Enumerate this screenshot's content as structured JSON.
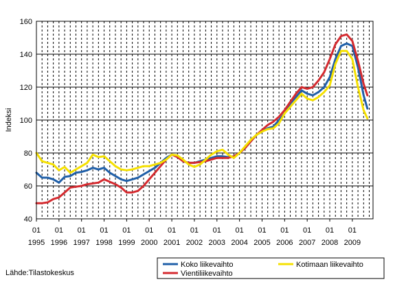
{
  "source_label": "Lähde:Tilastokeskus",
  "colors": {
    "koko": "#1f5fa8",
    "vienti": "#d42a2f",
    "kotimaa": "#f5e000",
    "grid": "#000000",
    "axis": "#000000"
  },
  "chart_data": {
    "type": "line",
    "title": "",
    "xlabel": "",
    "ylabel": "Indeksi",
    "ylim": [
      40,
      160
    ],
    "yticks": [
      40,
      60,
      80,
      100,
      120,
      140,
      160
    ],
    "xlim": [
      1995.0,
      2009.917
    ],
    "x_major_ticks": [
      "01",
      "01",
      "01",
      "01",
      "01",
      "01",
      "01",
      "01",
      "01",
      "01",
      "01",
      "01",
      "01",
      "01",
      "01"
    ],
    "x_year_labels": [
      "1995",
      "1996",
      "1997",
      "1998",
      "1999",
      "2000",
      "2001",
      "2002",
      "2003",
      "2004",
      "2005",
      "2006",
      "2007",
      "2008",
      "2009"
    ],
    "grid_horizontal": true,
    "grid_vertical": "dashed",
    "legend_position": "bottom-right",
    "series": [
      {
        "key": "koko",
        "name": "Koko liikevaihto",
        "color": "#1f5fa8",
        "points": [
          [
            1995.0,
            68
          ],
          [
            1995.25,
            65
          ],
          [
            1995.5,
            65
          ],
          [
            1995.75,
            64
          ],
          [
            1996.0,
            62
          ],
          [
            1996.25,
            65.5
          ],
          [
            1996.5,
            66
          ],
          [
            1996.75,
            68
          ],
          [
            1997.0,
            68.5
          ],
          [
            1997.25,
            69.5
          ],
          [
            1997.5,
            71
          ],
          [
            1997.75,
            70
          ],
          [
            1998.0,
            71
          ],
          [
            1998.25,
            68
          ],
          [
            1998.5,
            66
          ],
          [
            1998.75,
            64
          ],
          [
            1999.0,
            63
          ],
          [
            1999.25,
            64
          ],
          [
            1999.5,
            65
          ],
          [
            1999.75,
            67
          ],
          [
            2000.0,
            69
          ],
          [
            2000.25,
            71
          ],
          [
            2000.5,
            74
          ],
          [
            2000.75,
            77
          ],
          [
            2001.0,
            79
          ],
          [
            2001.25,
            78
          ],
          [
            2001.5,
            75
          ],
          [
            2001.75,
            74
          ],
          [
            2002.0,
            74
          ],
          [
            2002.25,
            75
          ],
          [
            2002.5,
            76
          ],
          [
            2002.75,
            77
          ],
          [
            2003.0,
            78
          ],
          [
            2003.25,
            78
          ],
          [
            2003.5,
            77.5
          ],
          [
            2003.75,
            78
          ],
          [
            2004.0,
            80
          ],
          [
            2004.25,
            83
          ],
          [
            2004.5,
            87
          ],
          [
            2004.75,
            91
          ],
          [
            2005.0,
            93
          ],
          [
            2005.25,
            95
          ],
          [
            2005.5,
            96
          ],
          [
            2005.75,
            100
          ],
          [
            2006.0,
            104
          ],
          [
            2006.25,
            110
          ],
          [
            2006.5,
            114
          ],
          [
            2006.75,
            118
          ],
          [
            2007.0,
            116
          ],
          [
            2007.25,
            115
          ],
          [
            2007.5,
            117
          ],
          [
            2007.75,
            120
          ],
          [
            2008.0,
            126
          ],
          [
            2008.25,
            137
          ],
          [
            2008.5,
            145
          ],
          [
            2008.75,
            146.5
          ],
          [
            2009.0,
            145
          ],
          [
            2009.25,
            132
          ],
          [
            2009.5,
            115
          ],
          [
            2009.667,
            107
          ]
        ]
      },
      {
        "key": "vienti",
        "name": "Vientiliikevaihto",
        "color": "#d42a2f",
        "points": [
          [
            1995.0,
            49.5
          ],
          [
            1995.25,
            49.5
          ],
          [
            1995.5,
            50
          ],
          [
            1995.75,
            52
          ],
          [
            1996.0,
            53
          ],
          [
            1996.25,
            56
          ],
          [
            1996.5,
            59
          ],
          [
            1996.75,
            59.5
          ],
          [
            1997.0,
            60
          ],
          [
            1997.25,
            61
          ],
          [
            1997.5,
            61.5
          ],
          [
            1997.75,
            62
          ],
          [
            1998.0,
            64
          ],
          [
            1998.25,
            62.5
          ],
          [
            1998.5,
            61
          ],
          [
            1998.75,
            59
          ],
          [
            1999.0,
            56
          ],
          [
            1999.25,
            56
          ],
          [
            1999.5,
            57
          ],
          [
            1999.75,
            60
          ],
          [
            2000.0,
            64
          ],
          [
            2000.25,
            68
          ],
          [
            2000.5,
            72
          ],
          [
            2000.75,
            76
          ],
          [
            2001.0,
            79
          ],
          [
            2001.25,
            77.5
          ],
          [
            2001.5,
            75
          ],
          [
            2001.75,
            74
          ],
          [
            2002.0,
            74
          ],
          [
            2002.25,
            74.5
          ],
          [
            2002.5,
            75
          ],
          [
            2002.75,
            76
          ],
          [
            2003.0,
            77
          ],
          [
            2003.25,
            77
          ],
          [
            2003.5,
            77
          ],
          [
            2003.75,
            78
          ],
          [
            2004.0,
            80
          ],
          [
            2004.25,
            83
          ],
          [
            2004.5,
            87
          ],
          [
            2004.75,
            91
          ],
          [
            2005.0,
            94
          ],
          [
            2005.25,
            97
          ],
          [
            2005.5,
            99
          ],
          [
            2005.75,
            102
          ],
          [
            2006.0,
            106
          ],
          [
            2006.25,
            111
          ],
          [
            2006.5,
            116
          ],
          [
            2006.75,
            120
          ],
          [
            2007.0,
            119
          ],
          [
            2007.25,
            120
          ],
          [
            2007.5,
            124
          ],
          [
            2007.75,
            129
          ],
          [
            2008.0,
            137
          ],
          [
            2008.25,
            146
          ],
          [
            2008.5,
            151
          ],
          [
            2008.75,
            152
          ],
          [
            2009.0,
            148
          ],
          [
            2009.25,
            136
          ],
          [
            2009.5,
            122
          ],
          [
            2009.667,
            115
          ]
        ]
      },
      {
        "key": "kotimaa",
        "name": "Kotimaan liikevaihto",
        "color": "#f5e000",
        "points": [
          [
            1995.0,
            80
          ],
          [
            1995.25,
            75
          ],
          [
            1995.5,
            74
          ],
          [
            1995.75,
            73
          ],
          [
            1996.0,
            69.5
          ],
          [
            1996.25,
            71.5
          ],
          [
            1996.5,
            68
          ],
          [
            1996.75,
            70
          ],
          [
            1997.0,
            72
          ],
          [
            1997.25,
            74
          ],
          [
            1997.5,
            79
          ],
          [
            1997.75,
            77.5
          ],
          [
            1998.0,
            78
          ],
          [
            1998.25,
            75
          ],
          [
            1998.5,
            72
          ],
          [
            1998.75,
            70
          ],
          [
            1999.0,
            69.5
          ],
          [
            1999.25,
            70
          ],
          [
            1999.5,
            71
          ],
          [
            1999.75,
            72
          ],
          [
            2000.0,
            72
          ],
          [
            2000.25,
            73
          ],
          [
            2000.5,
            74
          ],
          [
            2000.75,
            76
          ],
          [
            2001.0,
            79
          ],
          [
            2001.25,
            78.5
          ],
          [
            2001.5,
            76
          ],
          [
            2001.75,
            73
          ],
          [
            2002.0,
            71.5
          ],
          [
            2002.25,
            73
          ],
          [
            2002.5,
            76
          ],
          [
            2002.75,
            79
          ],
          [
            2003.0,
            81
          ],
          [
            2003.25,
            82
          ],
          [
            2003.5,
            79
          ],
          [
            2003.75,
            77
          ],
          [
            2004.0,
            80
          ],
          [
            2004.25,
            84
          ],
          [
            2004.5,
            88
          ],
          [
            2004.75,
            91
          ],
          [
            2005.0,
            93
          ],
          [
            2005.25,
            94.5
          ],
          [
            2005.5,
            95
          ],
          [
            2005.75,
            98
          ],
          [
            2006.0,
            104
          ],
          [
            2006.25,
            108
          ],
          [
            2006.5,
            112
          ],
          [
            2006.75,
            116
          ],
          [
            2007.0,
            113
          ],
          [
            2007.25,
            112
          ],
          [
            2007.5,
            114
          ],
          [
            2007.75,
            117
          ],
          [
            2008.0,
            121
          ],
          [
            2008.25,
            134
          ],
          [
            2008.5,
            142
          ],
          [
            2008.75,
            142
          ],
          [
            2009.0,
            137
          ],
          [
            2009.25,
            120
          ],
          [
            2009.5,
            106
          ],
          [
            2009.667,
            101
          ]
        ]
      }
    ],
    "legend_rows": [
      [
        "koko",
        "kotimaa"
      ],
      [
        "vienti"
      ]
    ]
  }
}
